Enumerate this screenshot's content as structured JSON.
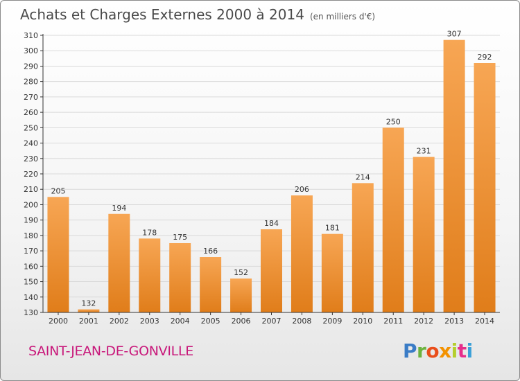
{
  "header": {
    "title": "Achats et Charges Externes 2000 à 2014",
    "unit": "(en milliers d'€)"
  },
  "footer": {
    "commune": "SAINT-JEAN-DE-GONVILLE",
    "logo": "Proxiti"
  },
  "colors": {
    "bar_top": "#f7a654",
    "bar_bottom": "#e07d1a",
    "grid": "#d9d9d9",
    "axis": "#333333",
    "commune": "#c8177a"
  },
  "chart_data": {
    "type": "bar",
    "categories": [
      "2000",
      "2001",
      "2002",
      "2003",
      "2004",
      "2005",
      "2006",
      "2007",
      "2008",
      "2009",
      "2010",
      "2011",
      "2012",
      "2013",
      "2014"
    ],
    "values": [
      205,
      132,
      194,
      178,
      175,
      166,
      152,
      184,
      206,
      181,
      214,
      250,
      231,
      307,
      292
    ],
    "ylim": [
      130,
      310
    ],
    "yticks": [
      130,
      140,
      150,
      160,
      170,
      180,
      190,
      200,
      210,
      220,
      230,
      240,
      250,
      260,
      270,
      280,
      290,
      300,
      310
    ],
    "grid": true,
    "data_labels": true
  }
}
